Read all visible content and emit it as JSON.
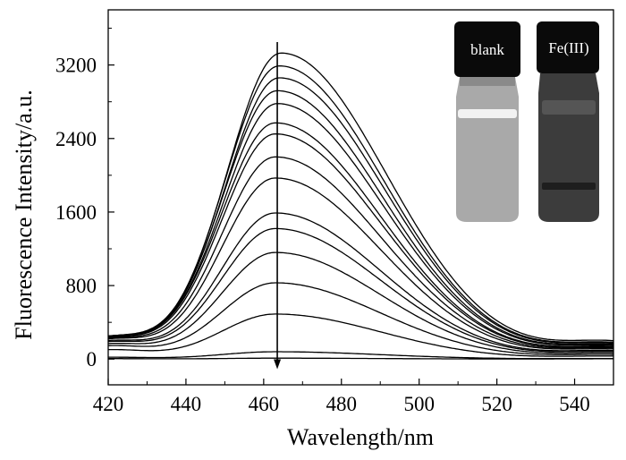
{
  "chart_data": {
    "type": "line",
    "title": "",
    "xlabel": "Wavelength/nm",
    "ylabel": "Fluorescence Intensity/a.u.",
    "xlim": [
      420,
      550
    ],
    "ylim": [
      -280,
      3800
    ],
    "xticks": [
      420,
      440,
      460,
      480,
      500,
      520,
      540
    ],
    "yticks": [
      0,
      800,
      1600,
      2400,
      3200
    ],
    "grid": false,
    "legend": "none",
    "peak_wavelength": 463,
    "series": [
      {
        "peak": 3330,
        "peak_x": 464.5,
        "start": 230,
        "end": 180
      },
      {
        "peak": 3190,
        "peak_x": 464,
        "start": 230,
        "end": 165
      },
      {
        "peak": 3060,
        "peak_x": 464,
        "start": 230,
        "end": 155
      },
      {
        "peak": 2920,
        "peak_x": 463.5,
        "start": 225,
        "end": 145
      },
      {
        "peak": 2780,
        "peak_x": 463.5,
        "start": 225,
        "end": 135
      },
      {
        "peak": 2570,
        "peak_x": 463,
        "start": 220,
        "end": 125
      },
      {
        "peak": 2450,
        "peak_x": 463,
        "start": 215,
        "end": 118
      },
      {
        "peak": 2200,
        "peak_x": 463,
        "start": 210,
        "end": 110
      },
      {
        "peak": 1970,
        "peak_x": 463,
        "start": 205,
        "end": 100
      },
      {
        "peak": 1590,
        "peak_x": 463,
        "start": 190,
        "end": 85
      },
      {
        "peak": 1420,
        "peak_x": 463,
        "start": 180,
        "end": 75
      },
      {
        "peak": 1160,
        "peak_x": 463,
        "start": 160,
        "end": 60
      },
      {
        "peak": 830,
        "peak_x": 463,
        "start": 140,
        "end": 45
      },
      {
        "peak": 490,
        "peak_x": 463,
        "start": 100,
        "end": 30
      },
      {
        "peak": 80,
        "peak_x": 463,
        "start": 20,
        "end": 5
      },
      {
        "peak": 10,
        "peak_x": 463,
        "start": 5,
        "end": 3
      }
    ],
    "arrow": {
      "x": 463.5,
      "from": 3450,
      "to": -100
    },
    "inset": {
      "labels": [
        "blank",
        "Fe(III)"
      ]
    }
  },
  "colors": {
    "axis": "#000000",
    "curve": "#000000",
    "cap": "#0a0a0a",
    "blank_fill": "#a9a9a9",
    "fe_fill": "#3c3c3c"
  }
}
